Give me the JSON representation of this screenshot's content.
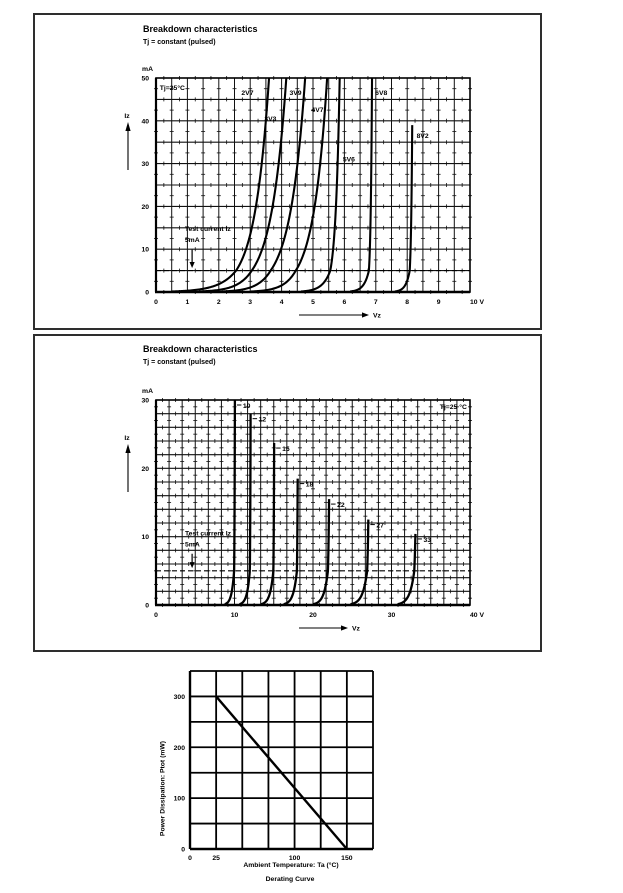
{
  "page": {
    "background": "#ffffff",
    "line_color": "#000000",
    "grid_color": "#111111"
  },
  "chart_data": [
    {
      "type": "line",
      "id": "breakdown-low-voltage",
      "title": "Breakdown characteristics",
      "subtitle": "Tj = constant (pulsed)",
      "corner_label": "Tj=25°C",
      "corner_pos": [
        0.12,
        47.2
      ],
      "corner_align": "start",
      "y_unit": "mA",
      "y_arrow_label": "Iz",
      "x_arrow_label": "Vz",
      "x_suffix": "V",
      "xlim": [
        0,
        10
      ],
      "ylim": [
        0,
        50
      ],
      "x_ticks": [
        0,
        1,
        2,
        3,
        4,
        5,
        6,
        7,
        8,
        9,
        10
      ],
      "y_ticks": [
        0,
        10,
        20,
        30,
        40,
        50
      ],
      "x_grid_step": 0.5,
      "y_grid_step": 5,
      "x_minor_step": 0.25,
      "y_minor_step": 2.5,
      "stroke_w": 2.1,
      "vz_len": 63,
      "test_current": {
        "line1": "Test current Iz",
        "line2": "5mA",
        "value_ma": 5,
        "text_pos": [
          0.92,
          14.3
        ],
        "arrow_x": 1.15,
        "arrow_from": 9.9,
        "arrow_to": 5.6
      },
      "curves": [
        {
          "label": "2V7",
          "v0": 0.9,
          "v5": 2.55,
          "vtop": 3.6,
          "itop": 50,
          "label_pos": [
            2.72,
            46
          ]
        },
        {
          "label": "3V3",
          "v0": 1.7,
          "v5": 3.05,
          "vtop": 4.15,
          "itop": 50,
          "label_pos": [
            3.45,
            40
          ]
        },
        {
          "label": "3V9",
          "v0": 2.4,
          "v5": 3.65,
          "vtop": 4.75,
          "itop": 50,
          "label_pos": [
            4.25,
            46
          ]
        },
        {
          "label": "4V7",
          "v0": 3.3,
          "v5": 4.45,
          "vtop": 5.45,
          "itop": 50,
          "label_pos": [
            4.95,
            42
          ]
        },
        {
          "label": "5V6",
          "v0": 4.8,
          "v5": 5.55,
          "vtop": 5.85,
          "itop": 50,
          "label_pos": [
            5.95,
            30.5
          ]
        },
        {
          "label": "6V8",
          "v0": 6.3,
          "v5": 6.78,
          "vtop": 6.88,
          "itop": 50,
          "label_pos": [
            6.98,
            46
          ]
        },
        {
          "label": "8V2",
          "v0": 7.7,
          "v5": 8.08,
          "vtop": 8.16,
          "itop": 39,
          "label_pos": [
            8.3,
            36
          ]
        }
      ]
    },
    {
      "type": "line",
      "id": "breakdown-high-voltage",
      "title": "Breakdown characteristics",
      "subtitle": "Tj = constant (pulsed)",
      "corner_label": "Tj=25 °C",
      "corner_pos": [
        39.6,
        28.7
      ],
      "corner_align": "end",
      "y_unit": "mA",
      "y_arrow_label": "Iz",
      "x_arrow_label": "Vz",
      "x_suffix": "V",
      "xlim": [
        0,
        40
      ],
      "ylim": [
        0,
        30
      ],
      "x_ticks": [
        0,
        10,
        20,
        30,
        40
      ],
      "y_ticks": [
        0,
        10,
        20,
        30
      ],
      "x_grid_step": 1.66666667,
      "y_grid_step": 2,
      "x_minor_step": 0.83333333,
      "y_minor_step": 1,
      "stroke_w": 2.3,
      "vz_len": 42,
      "test_current": {
        "line1": "Test current Iz",
        "line2": "5mA",
        "value_ma": 5,
        "text_pos": [
          3.7,
          10.2
        ],
        "arrow_x": 4.6,
        "arrow_from": 7.5,
        "arrow_to": 5.4
      },
      "curves": [
        {
          "label": "10",
          "v0": 9.0,
          "v5": 9.95,
          "vtop": 10.05,
          "itop": 30
        },
        {
          "label": "12",
          "v0": 10.9,
          "v5": 11.95,
          "vtop": 12.05,
          "itop": 28
        },
        {
          "label": "15",
          "v0": 13.7,
          "v5": 14.95,
          "vtop": 15.05,
          "itop": 23.7
        },
        {
          "label": "18",
          "v0": 16.6,
          "v5": 17.95,
          "vtop": 18.05,
          "itop": 18.5
        },
        {
          "label": "22",
          "v0": 20.4,
          "v5": 21.9,
          "vtop": 22.05,
          "itop": 15.5
        },
        {
          "label": "27",
          "v0": 25.2,
          "v5": 26.9,
          "vtop": 27.05,
          "itop": 12.5
        },
        {
          "label": "33",
          "v0": 31.2,
          "v5": 32.9,
          "vtop": 33.05,
          "itop": 10.4
        }
      ]
    },
    {
      "type": "line",
      "id": "derating-curve",
      "caption": "Derating Curve",
      "x_title": "Ambient Temperature: Ta (°C)",
      "y_title": "Power Dissipation: Ptot (mW)",
      "xlim": [
        0,
        175
      ],
      "ylim": [
        0,
        350
      ],
      "x_grid_step": 25,
      "y_grid_step": 50,
      "x_ticks": [
        0,
        25,
        100,
        150
      ],
      "y_ticks": [
        0,
        100,
        200,
        300
      ],
      "line": [
        [
          25,
          300
        ],
        [
          150,
          0
        ]
      ]
    }
  ]
}
